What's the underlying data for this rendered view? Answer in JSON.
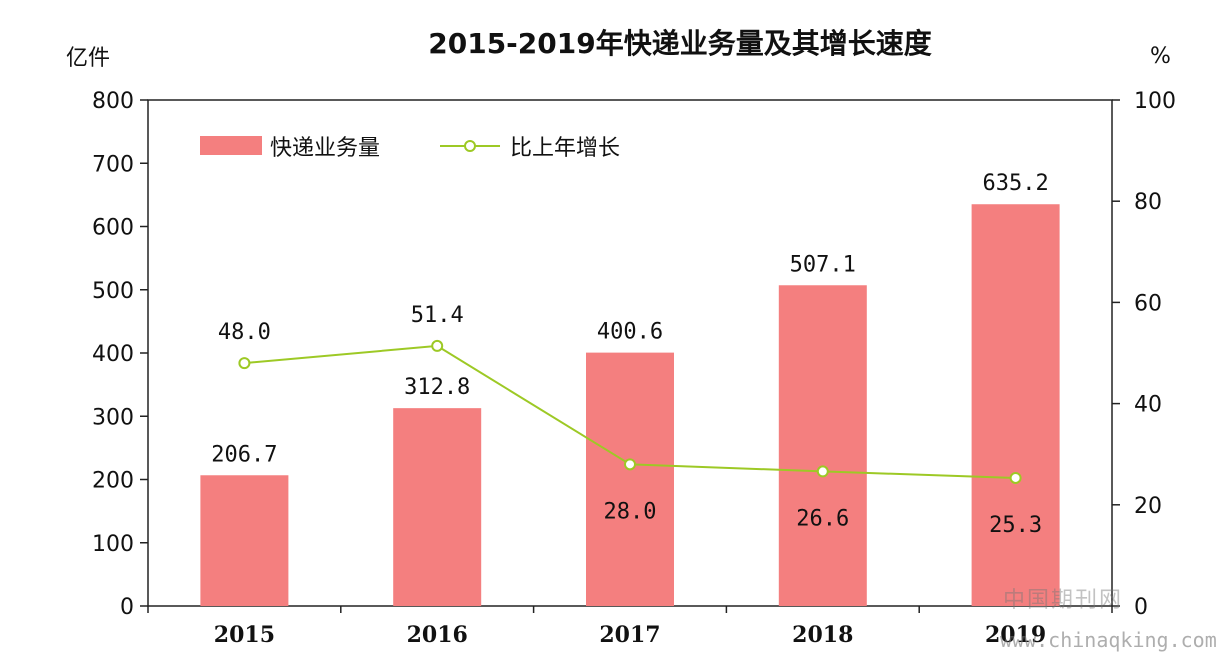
{
  "chart_data": {
    "type": "bar",
    "title": "2015-2019年快递业务量及其增长速度",
    "ylabel_left": "亿件",
    "ylabel_right": "%",
    "ylim_left": [
      0,
      800
    ],
    "ylim_right": [
      0,
      100
    ],
    "yticks_left": [
      "0",
      "100",
      "200",
      "300",
      "400",
      "500",
      "600",
      "700",
      "800"
    ],
    "yticks_right": [
      "0",
      "20",
      "40",
      "60",
      "80",
      "100"
    ],
    "categories": [
      "2015",
      "2016",
      "2017",
      "2018",
      "2019"
    ],
    "series": [
      {
        "name": "快递业务量",
        "kind": "bar",
        "axis": "left",
        "color": "#f47f7f",
        "values": [
          206.7,
          312.8,
          400.6,
          507.1,
          635.2
        ],
        "labels": [
          "206.7",
          "312.8",
          "400.6",
          "507.1",
          "635.2"
        ]
      },
      {
        "name": "比上年增长",
        "kind": "line",
        "axis": "right",
        "color": "#9dc925",
        "values": [
          48.0,
          51.4,
          28.0,
          26.6,
          25.3
        ],
        "labels": [
          "48.0",
          "51.4",
          "28.0",
          "26.6",
          "25.3"
        ]
      }
    ],
    "legend": "top-left",
    "grid": false
  },
  "watermark": {
    "cn": "中国期刊网",
    "url": "www.chinaqking.com"
  }
}
